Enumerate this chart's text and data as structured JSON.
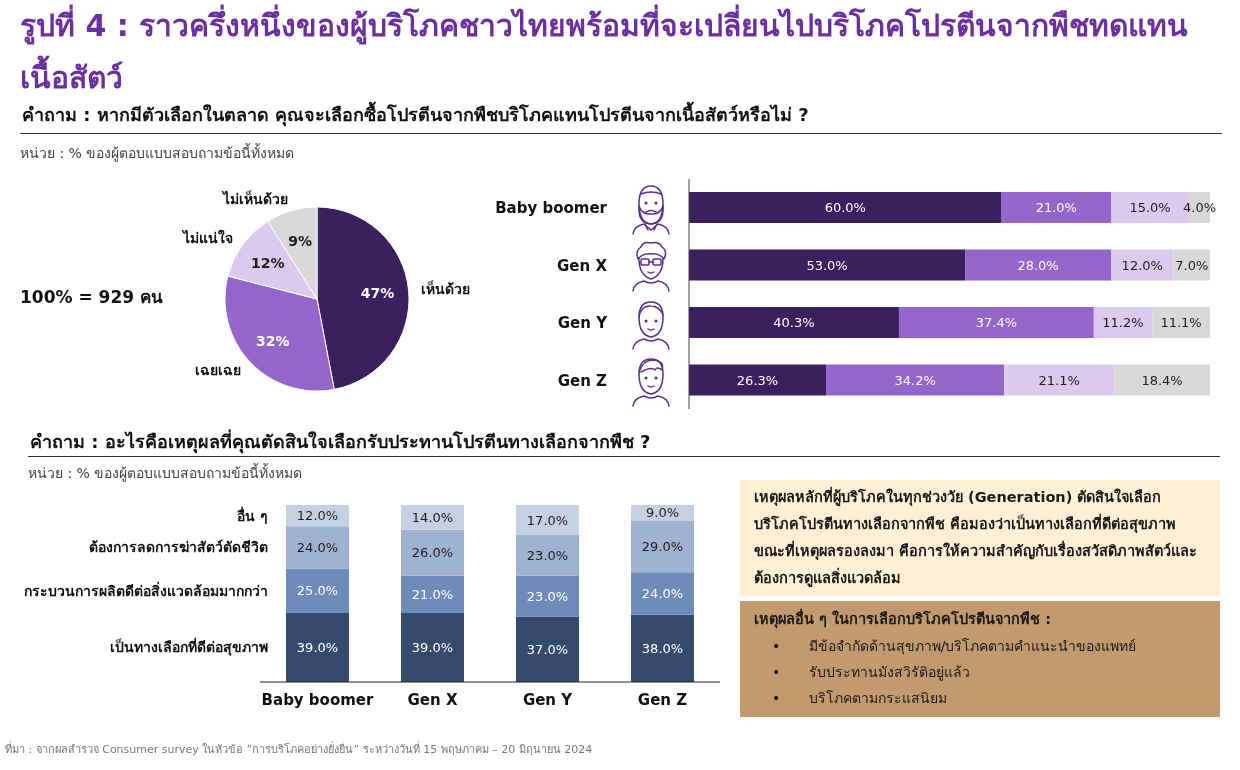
{
  "chart_data": [
    {
      "type": "pie",
      "title": "รูปที่ 4 : ราวครึ่งหนึ่งของผู้บริโภคชาวไทยพร้อมที่จะเปลี่ยนไปบริโภคโปรตีนจากพืชทดแทนเนื้อสัตว์",
      "subtitle": "คำถาม : หากมีตัวเลือกในตลาด คุณจะเลือกซื้อโปรตีนจากพืชบริโภคแทนโปรตีนจากเนื้อสัตว์หรือไม่ ?",
      "annotations": [
        "หน่วย : % ของผู้ตอบแบบสอบถามข้อนี้ทั้งหมด",
        "100% = 929 คน"
      ],
      "categories": [
        "เห็นด้วย",
        "เฉยเฉย",
        "ไม่แน่ใจ",
        "ไม่เห็นด้วย"
      ],
      "values": [
        47,
        32,
        12,
        9
      ],
      "colors": [
        "#3c1f5e",
        "#9466cc",
        "#dcc9ee",
        "#d8d8d8"
      ],
      "value_labels": [
        "47%",
        "32%",
        "12%",
        "9%"
      ]
    },
    {
      "type": "bar",
      "orientation": "horizontal",
      "stacked": true,
      "categories": [
        "Baby boomer",
        "Gen X",
        "Gen Y",
        "Gen Z"
      ],
      "series": [
        {
          "color": "#3c1f5e",
          "values": [
            60.0,
            53.0,
            40.3,
            26.3
          ],
          "value_labels": [
            "60.0%",
            "53.0%",
            "40.3%",
            "26.3%"
          ]
        },
        {
          "color": "#9466cc",
          "values": [
            21.0,
            28.0,
            37.4,
            34.2
          ],
          "value_labels": [
            "21.0%",
            "28.0%",
            "37.4%",
            "34.2%"
          ]
        },
        {
          "color": "#dcc9ee",
          "values": [
            15.0,
            12.0,
            11.2,
            21.1
          ],
          "value_labels": [
            "15.0%",
            "12.0%",
            "11.2%",
            "21.1%"
          ]
        },
        {
          "color": "#d8d8d8",
          "values": [
            4.0,
            7.0,
            11.1,
            18.4
          ],
          "value_labels": [
            "4.0%",
            "7.0%",
            "11.1%",
            "18.4%"
          ]
        }
      ]
    },
    {
      "type": "bar",
      "stacked": true,
      "title": "คำถาม : อะไรคือเหตุผลที่คุณตัดสินใจเลือกรับประทานโปรตีนทางเลือกจากพืช ?",
      "annotations": [
        "หน่วย : % ของผู้ตอบแบบสอบถามข้อนี้ทั้งหมด",
        "ที่มา : จากผลสำรวจ Consumer survey ในหัวข้อ “การบริโภคอย่างยั่งยืน” ระหว่างวันที่ 15 พฤษภาคม – 20 มิถุนายน 2024"
      ],
      "categories": [
        "Baby boomer",
        "Gen X",
        "Gen Y",
        "Gen Z"
      ],
      "legend": "left",
      "series": [
        {
          "name": "เป็นทางเลือกที่ดีต่อสุขภาพ",
          "color": "#354b6c",
          "values": [
            39.0,
            39.0,
            37.0,
            38.0
          ],
          "value_labels": [
            "39.0%",
            "39.0%",
            "37.0%",
            "38.0%"
          ]
        },
        {
          "name": "กระบวนการผลิตดีต่อสิ่งแวดล้อมมากกว่า",
          "color": "#6d8cba",
          "values": [
            25.0,
            21.0,
            23.0,
            24.0
          ],
          "value_labels": [
            "25.0%",
            "21.0%",
            "23.0%",
            "24.0%"
          ]
        },
        {
          "name": "ต้องการลดการฆ่าสัตว์ตัดชีวิต",
          "color": "#9fb2d2",
          "values": [
            24.0,
            26.0,
            23.0,
            29.0
          ],
          "value_labels": [
            "24.0%",
            "26.0%",
            "23.0%",
            "29.0%"
          ]
        },
        {
          "name": "อื่น ๆ",
          "color": "#c5d0e3",
          "values": [
            12.0,
            14.0,
            17.0,
            9.0
          ],
          "value_labels": [
            "12.0%",
            "14.0%",
            "17.0%",
            "9.0%"
          ]
        }
      ]
    },
    {
      "type": "other",
      "annotations": [
        "เหตุผลหลักที่ผู้บริโภคในทุกช่วงวัย (Generation) ตัดสินใจเลือกบริโภคโปรตีนทางเลือกจากพืช คือมองว่าเป็นทางเลือกที่ดีต่อสุขภาพ ขณะที่เหตุผลรองลงมา คือการให้ความสำคัญกับเรื่องสวัสดิภาพสัตว์และต้องการดูแลสิ่งแวดล้อม",
        "เหตุผลอื่น ๆ ในการเลือกบริโภคโปรตีนจากพืช :",
        "• มีข้อจำกัดด้านสุขภาพ/บริโภคตามคำแนะนำของแพทย์",
        "• รับประทานมังสวิรัติอยู่แล้ว",
        "• บริโภคตามกระแสนิยม"
      ]
    }
  ]
}
